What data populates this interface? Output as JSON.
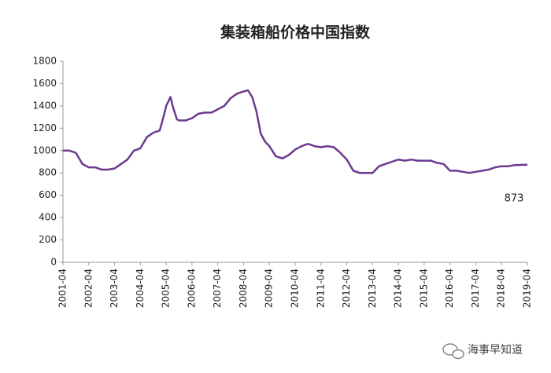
{
  "chart_data": {
    "type": "line",
    "title": "集装箱船价格中国指数",
    "x": [
      "2001-04",
      "2001-07",
      "2001-10",
      "2002-01",
      "2002-04",
      "2002-07",
      "2002-10",
      "2003-01",
      "2003-04",
      "2003-07",
      "2003-10",
      "2004-01",
      "2004-04",
      "2004-07",
      "2004-10",
      "2005-01",
      "2005-03",
      "2005-04",
      "2005-06",
      "2005-07",
      "2005-09",
      "2005-10",
      "2006-01",
      "2006-04",
      "2006-07",
      "2006-10",
      "2007-01",
      "2007-04",
      "2007-07",
      "2007-10",
      "2008-01",
      "2008-04",
      "2008-06",
      "2008-08",
      "2008-10",
      "2008-12",
      "2009-02",
      "2009-04",
      "2009-07",
      "2009-10",
      "2010-01",
      "2010-04",
      "2010-07",
      "2010-10",
      "2011-01",
      "2011-04",
      "2011-07",
      "2011-10",
      "2012-01",
      "2012-04",
      "2012-07",
      "2012-10",
      "2013-01",
      "2013-04",
      "2013-07",
      "2013-10",
      "2014-01",
      "2014-04",
      "2014-07",
      "2014-10",
      "2015-01",
      "2015-04",
      "2015-07",
      "2015-10",
      "2016-01",
      "2016-04",
      "2016-07",
      "2016-10",
      "2017-01",
      "2017-04",
      "2017-07",
      "2017-10",
      "2018-01",
      "2018-04",
      "2018-07",
      "2018-10",
      "2019-04"
    ],
    "series": [
      {
        "name": "集装箱船价格中国指数",
        "color": "#6b3a8f",
        "values": [
          1000,
          1000,
          980,
          880,
          850,
          850,
          830,
          830,
          840,
          880,
          920,
          1000,
          1020,
          1120,
          1160,
          1180,
          1320,
          1400,
          1480,
          1400,
          1280,
          1270,
          1270,
          1290,
          1330,
          1340,
          1340,
          1370,
          1400,
          1470,
          1510,
          1530,
          1540,
          1480,
          1350,
          1150,
          1080,
          1040,
          950,
          930,
          960,
          1010,
          1040,
          1060,
          1040,
          1030,
          1040,
          1030,
          980,
          920,
          820,
          800,
          800,
          800,
          860,
          880,
          900,
          920,
          910,
          920,
          910,
          910,
          910,
          890,
          880,
          820,
          820,
          810,
          800,
          810,
          820,
          830,
          850,
          860,
          860,
          870,
          873
        ]
      }
    ],
    "ylim": [
      0,
      1800
    ],
    "yticks": [
      0,
      200,
      400,
      600,
      800,
      1000,
      1200,
      1400,
      1600,
      1800
    ],
    "xticks": [
      "2001-04",
      "2002-04",
      "2003-04",
      "2004-04",
      "2005-04",
      "2006-04",
      "2007-04",
      "2008-04",
      "2009-04",
      "2010-04",
      "2011-04",
      "2012-04",
      "2013-04",
      "2014-04",
      "2015-04",
      "2016-04",
      "2017-04",
      "2018-04",
      "2019-04"
    ],
    "grid": false,
    "annotations": [
      {
        "text": "873"
      }
    ],
    "watermark": "海事早知道"
  }
}
